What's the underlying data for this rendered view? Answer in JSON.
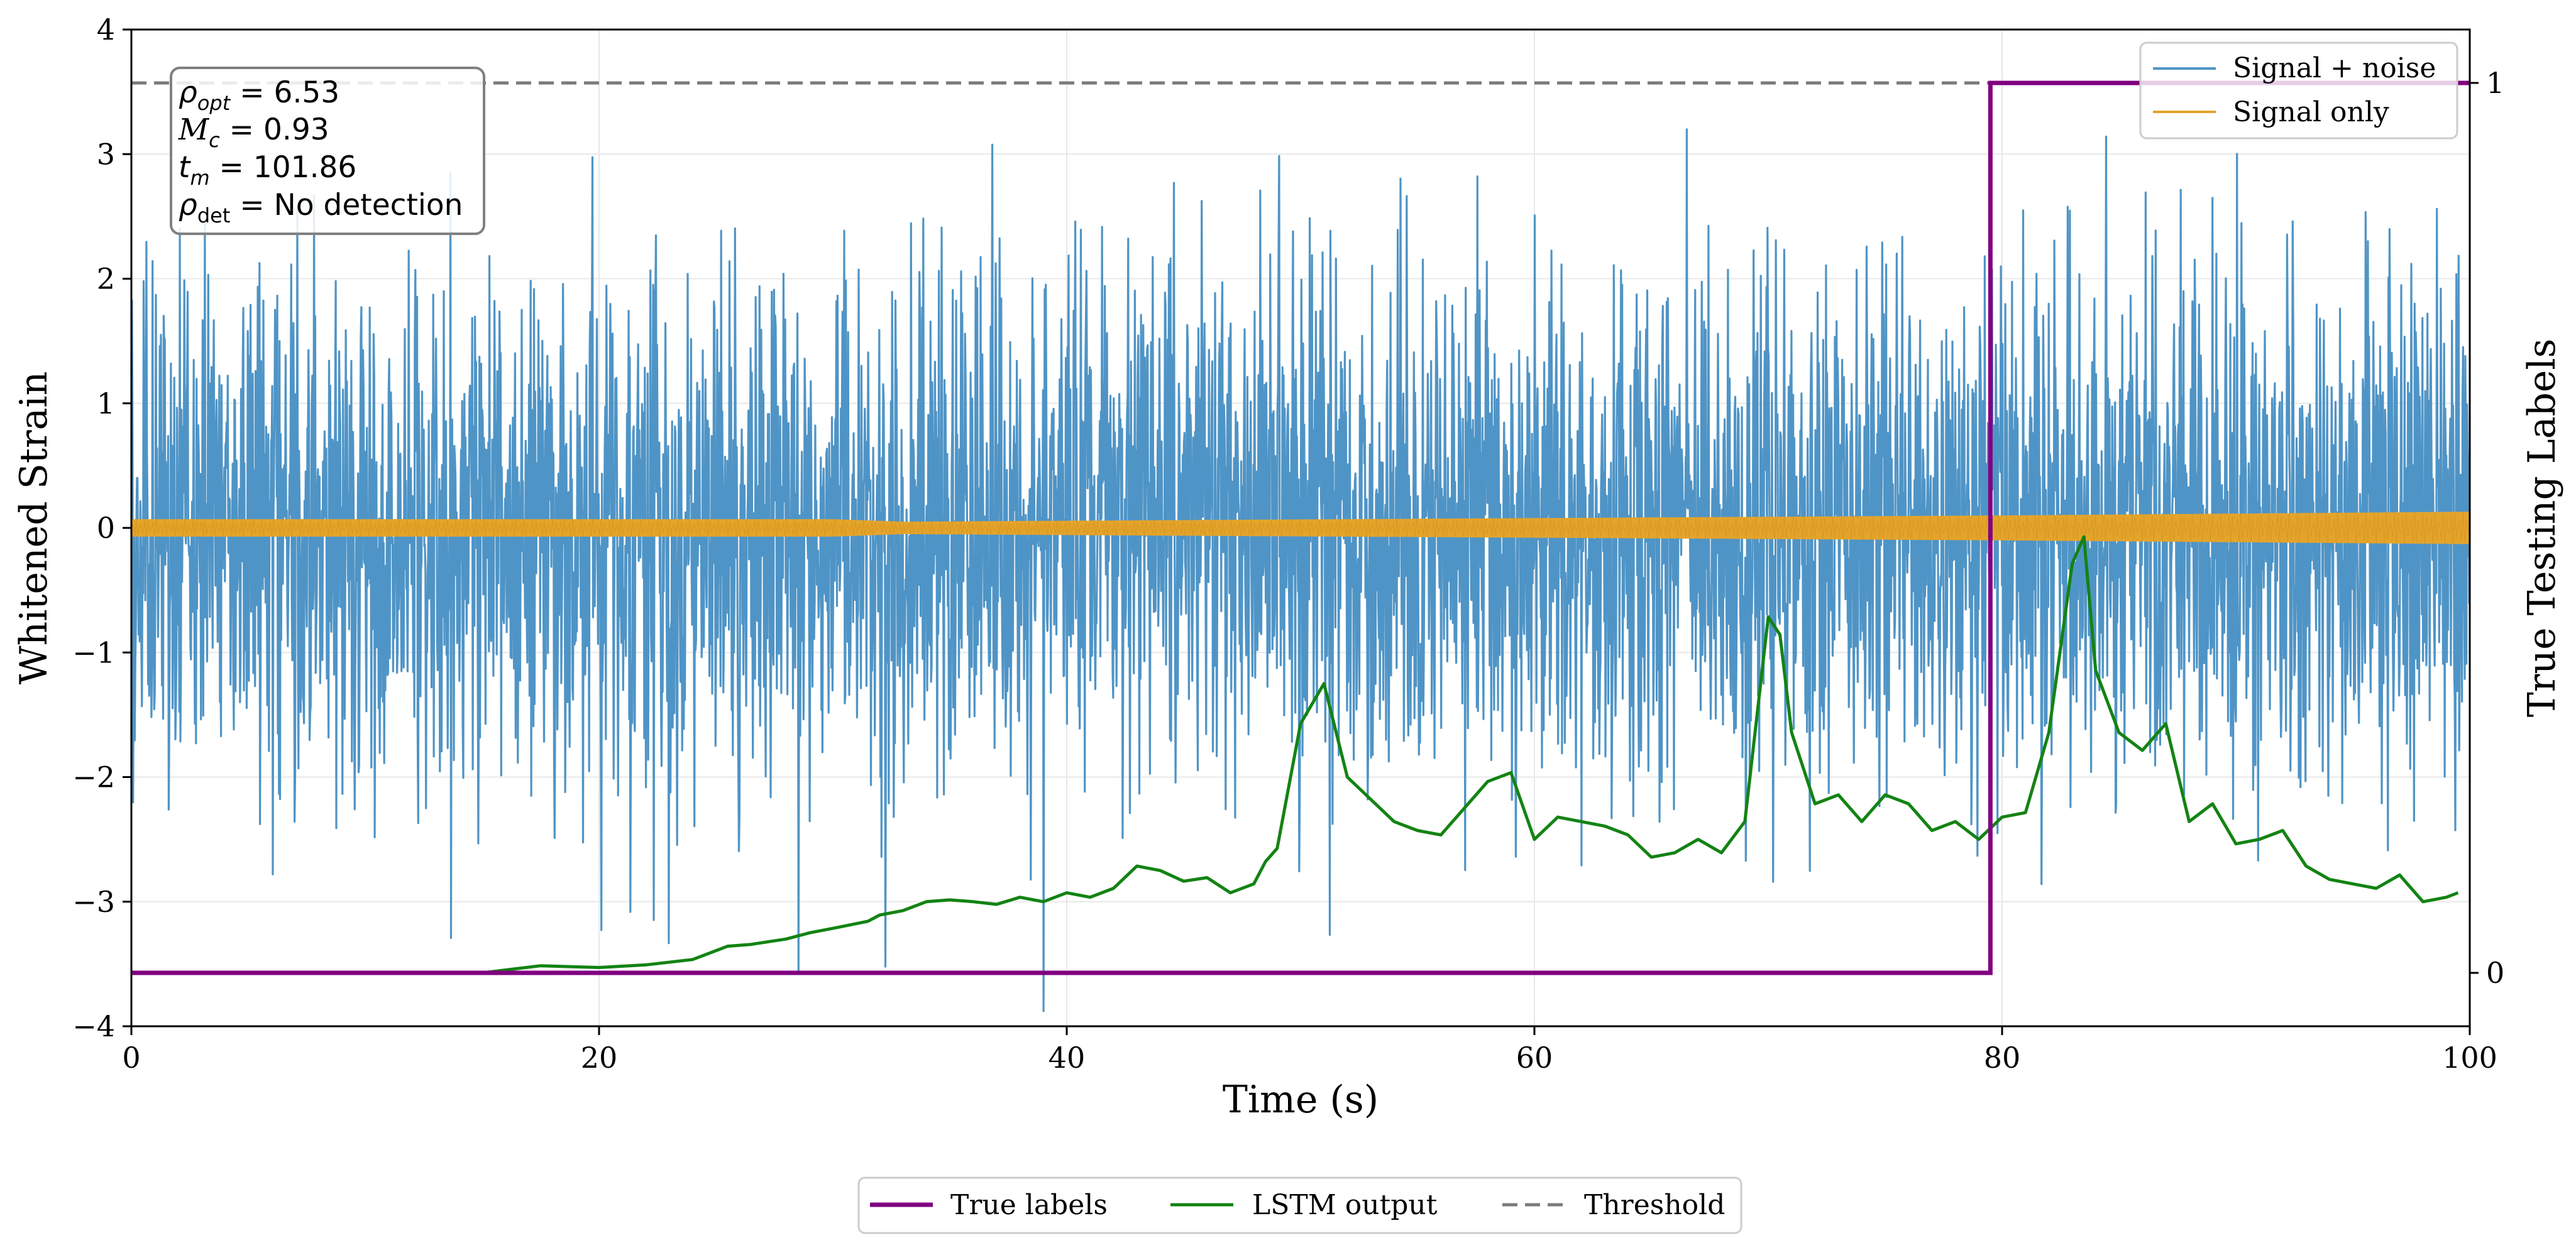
{
  "chart_data": {
    "type": "line",
    "title": "",
    "xlabel": "Time (s)",
    "ylabel": "Whitened Strain",
    "ylabel_right": "True Testing Labels",
    "xlim": [
      0,
      100
    ],
    "ylim": [
      -4,
      4
    ],
    "ylim_right": [
      -0.06,
      1.06
    ],
    "x_ticks": [
      "0",
      "20",
      "40",
      "60",
      "80",
      "100"
    ],
    "y_ticks": [
      "−4",
      "−3",
      "−2",
      "−1",
      "0",
      "1",
      "2",
      "3",
      "4"
    ],
    "y_right_ticks": [
      "0",
      "1"
    ],
    "grid": true,
    "series": [
      {
        "name": "Signal + noise",
        "axis": "left",
        "color": "#4f94c6",
        "noise": {
          "sigma": 1.0,
          "samples": 4200,
          "spikes_up_to": 3.9
        }
      },
      {
        "name": "Signal only",
        "axis": "left",
        "color": "#e4a42b",
        "envelope": {
          "x": [
            0,
            30,
            33,
            80,
            100
          ],
          "amplitude": [
            0.07,
            0.07,
            0.05,
            0.1,
            0.13
          ]
        }
      },
      {
        "name": "True labels",
        "axis": "right",
        "color": "#800080",
        "step": {
          "x": [
            0,
            79.5,
            79.5,
            100
          ],
          "y": [
            0,
            0,
            1,
            1
          ]
        }
      },
      {
        "name": "LSTM output",
        "axis": "right",
        "color": "#138313",
        "x": [
          0,
          15,
          17.5,
          20,
          22,
          24,
          25.5,
          26.5,
          28,
          29,
          30,
          31.5,
          32,
          33,
          34,
          35,
          36,
          37,
          38,
          39,
          40,
          41,
          42,
          43,
          44,
          45,
          46,
          47,
          48,
          48.5,
          49,
          50,
          51,
          52,
          53,
          54,
          55,
          56,
          57,
          58,
          59,
          60,
          61,
          62,
          63,
          64,
          65,
          66,
          67,
          68,
          69,
          70,
          70.5,
          71,
          72,
          73,
          74,
          75,
          76,
          77,
          78,
          79,
          80,
          81,
          82,
          83,
          83.5,
          84,
          85,
          86,
          87,
          88,
          89,
          90,
          91,
          92,
          93,
          94,
          95,
          96,
          97,
          98,
          99,
          99.5
        ],
        "y": [
          0.0,
          0.0,
          0.008,
          0.006,
          0.009,
          0.015,
          0.03,
          0.032,
          0.038,
          0.045,
          0.05,
          0.058,
          0.065,
          0.07,
          0.08,
          0.082,
          0.08,
          0.077,
          0.085,
          0.08,
          0.09,
          0.085,
          0.095,
          0.12,
          0.115,
          0.103,
          0.107,
          0.09,
          0.1,
          0.125,
          0.14,
          0.28,
          0.325,
          0.22,
          0.195,
          0.17,
          0.16,
          0.155,
          0.185,
          0.215,
          0.225,
          0.15,
          0.175,
          0.17,
          0.165,
          0.155,
          0.13,
          0.135,
          0.15,
          0.135,
          0.17,
          0.4,
          0.38,
          0.27,
          0.19,
          0.2,
          0.17,
          0.2,
          0.19,
          0.16,
          0.17,
          0.15,
          0.175,
          0.18,
          0.27,
          0.46,
          0.49,
          0.34,
          0.27,
          0.25,
          0.28,
          0.17,
          0.19,
          0.145,
          0.15,
          0.16,
          0.12,
          0.105,
          0.1,
          0.095,
          0.11,
          0.08,
          0.085,
          0.09
        ]
      },
      {
        "name": "Threshold",
        "axis": "right",
        "color": "#7a7a7a",
        "style": "dashed",
        "value": 1.0
      }
    ],
    "annotations": {
      "stats_box": {
        "rho_opt_value": "6.53",
        "mc_value": "0.93",
        "tm_value": "101.86",
        "rho_det_value": "No detection"
      }
    },
    "legend_upper": {
      "placement": "top-right",
      "entries": [
        "Signal + noise",
        "Signal only"
      ]
    },
    "legend_lower": {
      "placement": "bottom-center",
      "entries": [
        "True labels",
        "LSTM output",
        "Threshold"
      ]
    }
  }
}
